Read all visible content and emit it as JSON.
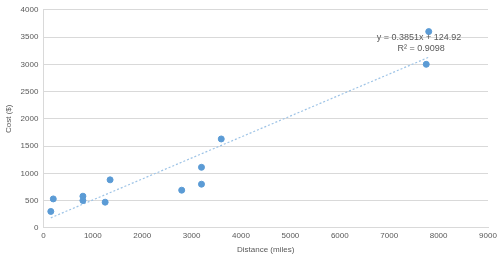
{
  "chart_data": {
    "type": "scatter",
    "x_label": "Distance (miles)",
    "y_label": "Cost ($)",
    "series": [
      {
        "type": "scatter",
        "marker": "circle",
        "color": "#5b9bd5",
        "x": [
          150,
          200,
          800,
          800,
          1250,
          1350,
          2800,
          3200,
          3200,
          3600,
          7750,
          7800
        ],
        "values": [
          300,
          530,
          500,
          580,
          470,
          880,
          690,
          1110,
          800,
          1630,
          3000,
          3600
        ]
      },
      {
        "type": "line",
        "line_style": "dotted",
        "color": "#9dc3e6",
        "x": [
          150,
          7800
        ],
        "values": [
          183,
          3129
        ]
      }
    ],
    "annotations": [
      "y = 0.3851x + 124.92",
      "R² = 0.9098"
    ],
    "xlim": [
      0,
      9000
    ],
    "xticks": [
      0,
      1000,
      2000,
      3000,
      4000,
      5000,
      6000,
      7000,
      8000,
      9000
    ],
    "ylim": [
      0,
      4000
    ],
    "yticks": [
      0,
      500,
      1000,
      1500,
      2000,
      2500,
      3000,
      3500,
      4000
    ],
    "grid": true
  }
}
